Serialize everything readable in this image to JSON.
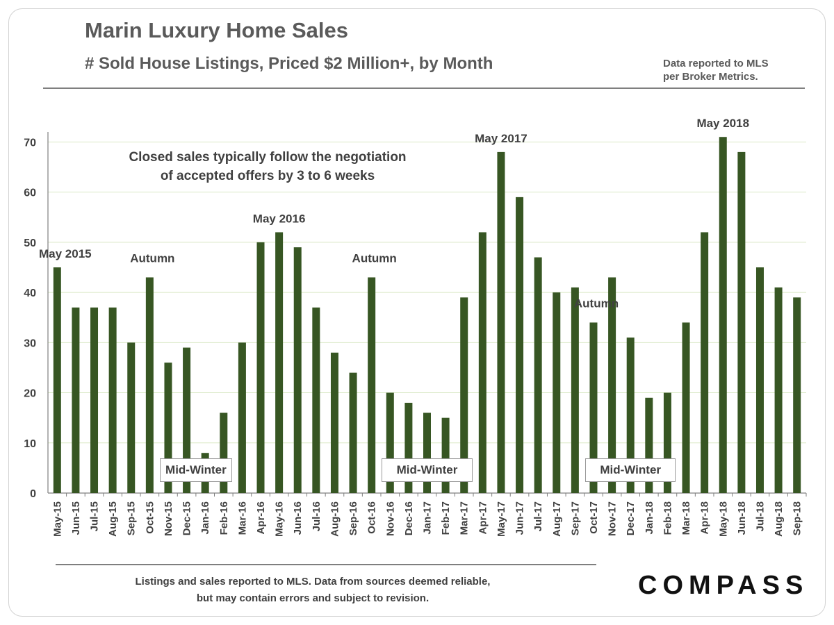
{
  "header": {
    "title": "Marin Luxury Home Sales",
    "subtitle": "# Sold House Listings, Priced $2 Million+,  by Month",
    "source_line1": "Data reported to MLS",
    "source_line2": "per Broker Metrics."
  },
  "footer": {
    "line1": "Listings  and sales reported to MLS. Data from sources deemed reliable,",
    "line2": "but may contain errors and subject to revision.",
    "logo": "COMPASS"
  },
  "chart_data": {
    "type": "bar",
    "title": "Marin Luxury Home Sales",
    "subtitle": "# Sold House Listings, Priced $2 Million+,  by Month",
    "categories": [
      "May-15",
      "Jun-15",
      "Jul-15",
      "Aug-15",
      "Sep-15",
      "Oct-15",
      "Nov-15",
      "Dec-15",
      "Jan-16",
      "Feb-16",
      "Mar-16",
      "Apr-16",
      "May-16",
      "Jun-16",
      "Jul-16",
      "Aug-16",
      "Sep-16",
      "Oct-16",
      "Nov-16",
      "Dec-16",
      "Jan-17",
      "Feb-17",
      "Mar-17",
      "Apr-17",
      "May-17",
      "Jun-17",
      "Jul-17",
      "Aug-17",
      "Sep-17",
      "Oct-17",
      "Nov-17",
      "Dec-17",
      "Jan-18",
      "Feb-18",
      "Mar-18",
      "Apr-18",
      "May-18",
      "Jun-18",
      "Jul-18",
      "Aug-18",
      "Sep-18"
    ],
    "values": [
      45,
      37,
      37,
      37,
      30,
      43,
      26,
      29,
      8,
      16,
      30,
      50,
      52,
      49,
      37,
      28,
      24,
      43,
      20,
      18,
      16,
      15,
      39,
      52,
      68,
      59,
      47,
      40,
      41,
      34,
      43,
      31,
      19,
      20,
      34,
      52,
      71,
      68,
      45,
      41,
      39
    ],
    "ylim": [
      0,
      72
    ],
    "yticks": [
      0,
      10,
      20,
      30,
      40,
      50,
      60,
      70
    ],
    "grid": true,
    "bar_color": "#375623",
    "annotations": {
      "note_line1": "Closed  sales  typically  follow  the negotiation",
      "note_line2": "of accepted  offers  by 3 to 6 weeks",
      "peaks": [
        {
          "text": "May 2015",
          "category": "May-15"
        },
        {
          "text": "May 2016",
          "category": "May-16"
        },
        {
          "text": "May 2017",
          "category": "May-17"
        },
        {
          "text": "May 2018",
          "category": "May-18"
        }
      ],
      "autumn": [
        {
          "text": "Autumn",
          "category": "Oct-15"
        },
        {
          "text": "Autumn",
          "category": "Oct-16"
        },
        {
          "text": "Autumn",
          "category": "Oct-17"
        }
      ],
      "mid_winter": [
        {
          "text": "Mid-Winter",
          "from": "Nov-15",
          "to": "Feb-16"
        },
        {
          "text": "Mid-Winter",
          "from": "Nov-16",
          "to": "Mar-17"
        },
        {
          "text": "Mid-Winter",
          "from": "Oct-17",
          "to": "Feb-18"
        }
      ]
    }
  }
}
